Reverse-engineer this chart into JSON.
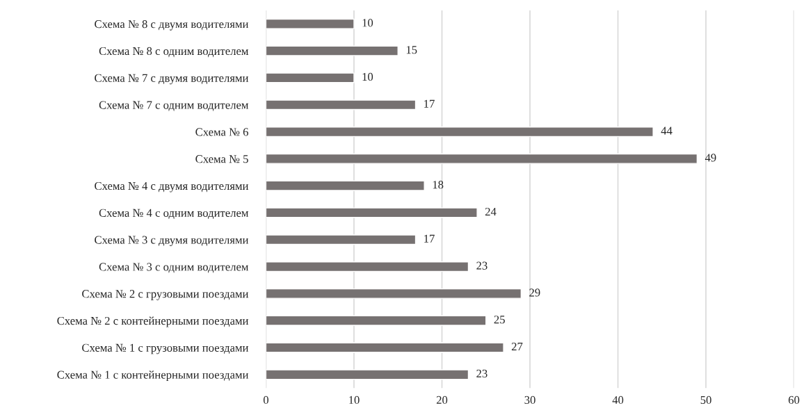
{
  "chart_data": {
    "type": "bar",
    "orientation": "horizontal",
    "categories": [
      "Схема № 8 с двумя водителями",
      "Схема № 8 с одним водителем",
      "Схема № 7 с двумя водителями",
      "Схема № 7 с одним водителем",
      "Схема № 6",
      "Схема № 5",
      "Схема № 4 с двумя водителями",
      "Схема № 4 с одним водителем",
      "Схема № 3 с двумя водителями",
      "Схема № 3 с одним водителем",
      "Схема № 2 с грузовыми поездами",
      "Схема № 2 с контейнерными поездами",
      "Схема № 1 с грузовыми поездами",
      "Схема № 1 с контейнерными поездами"
    ],
    "values": [
      10,
      15,
      10,
      17,
      44,
      49,
      18,
      24,
      17,
      23,
      29,
      25,
      27,
      23
    ],
    "color": "#767171",
    "xlim": [
      0,
      60
    ],
    "xticks": [
      0,
      10,
      20,
      30,
      40,
      50,
      60
    ],
    "grid": "x",
    "data_labels": true
  }
}
